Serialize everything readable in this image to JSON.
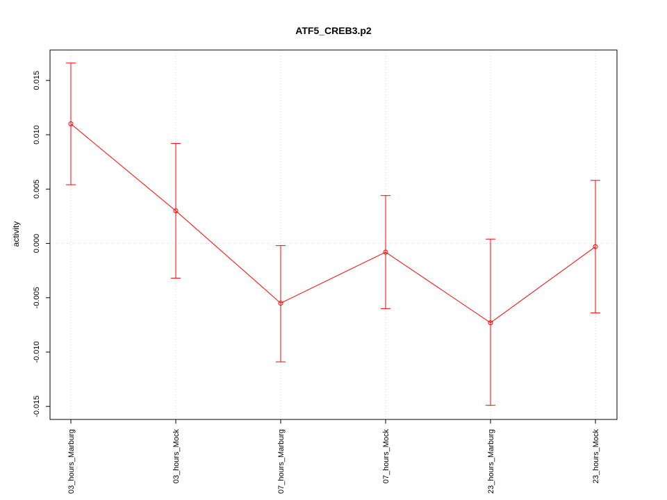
{
  "chart_data": {
    "type": "line",
    "title": "ATF5_CREB3.p2",
    "xlabel": "",
    "ylabel": "activity",
    "categories": [
      "03_hours_Marburg",
      "03_hours_Mock",
      "07_hours_Marburg",
      "07_hours_Mock",
      "23_hours_Marburg",
      "23_hours_Mock"
    ],
    "values": [
      0.011,
      0.003,
      -0.0055,
      -0.0008,
      -0.0073,
      -0.0003
    ],
    "upper": [
      0.0166,
      0.0092,
      -0.0002,
      0.0044,
      0.0004,
      0.0058
    ],
    "lower": [
      0.0054,
      -0.0032,
      -0.0109,
      -0.006,
      -0.0149,
      -0.0064
    ],
    "yticks": [
      -0.015,
      -0.01,
      -0.005,
      0.0,
      0.005,
      0.01,
      0.015
    ],
    "ytick_labels": [
      "-0.015",
      "-0.010",
      "-0.005",
      "0.000",
      "0.005",
      "0.010",
      "0.015"
    ],
    "ylim": [
      -0.0162,
      0.0178
    ],
    "grid": true,
    "color": "#ff0000"
  }
}
